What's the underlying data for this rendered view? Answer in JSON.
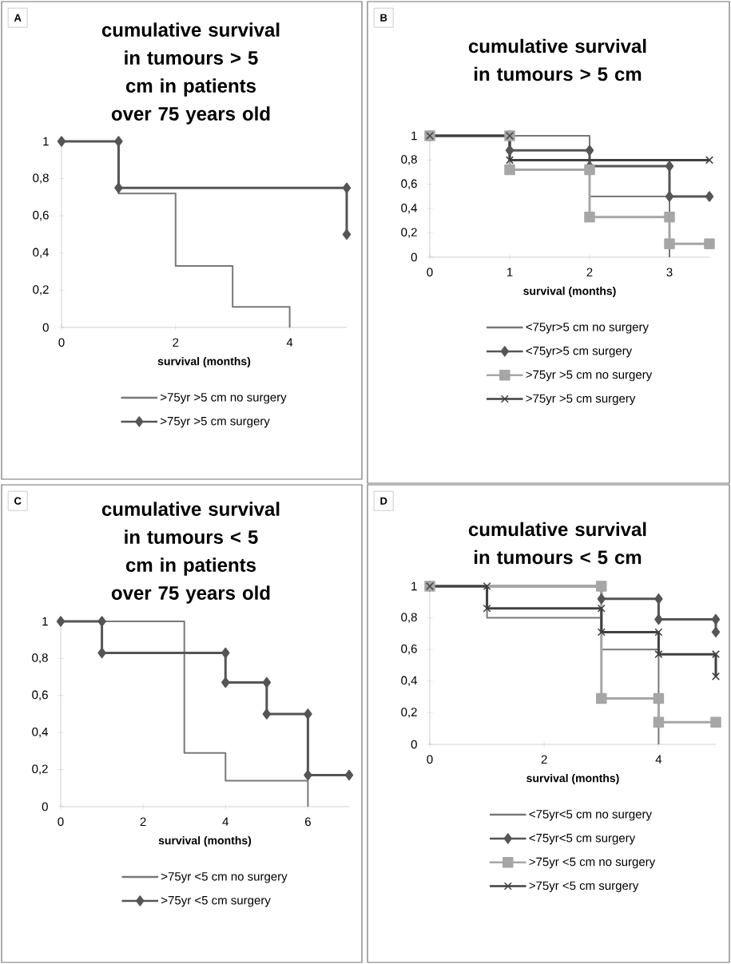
{
  "chart_data": [
    {
      "type": "line",
      "title": "cumulative survival in tumours > 5 cm in patients over 75 years old",
      "xlabel": "survival (months)",
      "annotations": [
        "A"
      ],
      "xlim": [
        0,
        5
      ],
      "xticks": [
        0,
        2,
        4
      ],
      "ylim": [
        0,
        1
      ],
      "yticks": [
        0,
        {
          "value": 0.2,
          "label": "0,2"
        },
        {
          "value": 0.4,
          "label": "0,4"
        },
        {
          "value": 0.6,
          "label": "0,6"
        },
        {
          "value": 0.8,
          "label": "0,8"
        },
        1
      ],
      "legend": "bottom",
      "series": [
        {
          "name": ">75yr >5 cm no surgery",
          "color": "#787878",
          "marker": "none",
          "x": [
            0,
            1,
            1,
            2,
            2,
            3,
            3,
            4,
            4
          ],
          "values": [
            1,
            1,
            0.72,
            0.72,
            0.33,
            0.33,
            0.11,
            0.11,
            0
          ]
        },
        {
          "name": ">75yr >5 cm surgery",
          "color": "#555555",
          "marker": "diamond",
          "x": [
            0,
            1,
            1,
            5,
            5
          ],
          "values": [
            1,
            1,
            0.75,
            0.75,
            0.5
          ]
        }
      ]
    },
    {
      "type": "line",
      "title": "cumulative survival in tumours > 5 cm",
      "xlabel": "survival (months)",
      "annotations": [
        "B"
      ],
      "xlim": [
        0,
        3.5
      ],
      "xticks": [
        0,
        1,
        2,
        3
      ],
      "ylim": [
        0,
        1
      ],
      "yticks": [
        0,
        {
          "value": 0.2,
          "label": "0,2"
        },
        {
          "value": 0.4,
          "label": "0,4"
        },
        {
          "value": 0.6,
          "label": "0,6"
        },
        {
          "value": 0.8,
          "label": "0,8"
        },
        1
      ],
      "legend": "bottom",
      "series": [
        {
          "name": "<75yr>5 cm no surgery",
          "color": "#787878",
          "marker": "none",
          "x": [
            0,
            2,
            2,
            3,
            3
          ],
          "values": [
            1,
            1,
            0.5,
            0.5,
            0
          ]
        },
        {
          "name": "<75yr>5 cm surgery",
          "color": "#555555",
          "marker": "diamond",
          "x": [
            0,
            1,
            1,
            2,
            2,
            3,
            3,
            3.5
          ],
          "values": [
            1,
            1,
            0.88,
            0.88,
            0.75,
            0.75,
            0.5,
            0.5
          ]
        },
        {
          "name": ">75yr >5 cm no surgery",
          "color": "#a6a6a6",
          "marker": "square",
          "x": [
            0,
            1,
            1,
            2,
            2,
            3,
            3,
            3.5
          ],
          "values": [
            1,
            1,
            0.72,
            0.72,
            0.33,
            0.33,
            0.11,
            0.11
          ]
        },
        {
          "name": ">75yr >5 cm surgery",
          "color": "#404040",
          "marker": "cross",
          "x": [
            0,
            1,
            1,
            3.5
          ],
          "values": [
            1,
            1,
            0.8,
            0.8
          ]
        }
      ]
    },
    {
      "type": "line",
      "title": "cumulative survival in tumours < 5 cm in patients over 75 years old",
      "xlabel": "survival (months)",
      "annotations": [
        "C"
      ],
      "xlim": [
        0,
        7
      ],
      "xticks": [
        0,
        2,
        4,
        6
      ],
      "ylim": [
        0,
        1
      ],
      "yticks": [
        0,
        {
          "value": 0.2,
          "label": "0,2"
        },
        {
          "value": 0.4,
          "label": "0,4"
        },
        {
          "value": 0.6,
          "label": "0,6"
        },
        {
          "value": 0.8,
          "label": "0,8"
        },
        1
      ],
      "legend": "bottom",
      "series": [
        {
          "name": ">75yr <5 cm no surgery",
          "color": "#787878",
          "marker": "none",
          "x": [
            0,
            3,
            3,
            4,
            4,
            6,
            6
          ],
          "values": [
            1,
            1,
            0.29,
            0.29,
            0.14,
            0.14,
            0
          ]
        },
        {
          "name": ">75yr <5 cm surgery",
          "color": "#555555",
          "marker": "diamond",
          "x": [
            0,
            1,
            1,
            4,
            4,
            5,
            5,
            6,
            6,
            7
          ],
          "values": [
            1,
            1,
            0.83,
            0.83,
            0.67,
            0.67,
            0.5,
            0.5,
            0.17,
            0.17
          ]
        }
      ]
    },
    {
      "type": "line",
      "title": "cumulative survival in tumours < 5 cm",
      "xlabel": "survival (months)",
      "annotations": [
        "D"
      ],
      "xlim": [
        0,
        5
      ],
      "xticks": [
        0,
        2,
        4
      ],
      "ylim": [
        0,
        1
      ],
      "yticks": [
        0,
        {
          "value": 0.2,
          "label": "0,2"
        },
        {
          "value": 0.4,
          "label": "0,4"
        },
        {
          "value": 0.6,
          "label": "0,6"
        },
        {
          "value": 0.8,
          "label": "0,8"
        },
        1
      ],
      "legend": "bottom",
      "series": [
        {
          "name": "<75yr<5 cm no surgery",
          "color": "#787878",
          "marker": "none",
          "x": [
            0,
            1,
            1,
            3,
            3,
            4,
            4
          ],
          "values": [
            1,
            1,
            0.8,
            0.8,
            0.6,
            0.6,
            0
          ]
        },
        {
          "name": "<75yr<5 cm surgery",
          "color": "#555555",
          "marker": "diamond",
          "x": [
            0,
            3,
            3,
            4,
            4,
            5,
            5
          ],
          "values": [
            1,
            1,
            0.92,
            0.92,
            0.79,
            0.79,
            0.71
          ]
        },
        {
          "name": ">75yr <5 cm no surgery",
          "color": "#a6a6a6",
          "marker": "square",
          "x": [
            0,
            3,
            3,
            4,
            4,
            5
          ],
          "values": [
            1,
            1,
            0.29,
            0.29,
            0.14,
            0.14
          ]
        },
        {
          "name": ">75yr <5 cm surgery",
          "color": "#404040",
          "marker": "cross",
          "x": [
            0,
            1,
            1,
            3,
            3,
            4,
            4,
            5,
            5
          ],
          "values": [
            1,
            1,
            0.86,
            0.86,
            0.71,
            0.71,
            0.57,
            0.57,
            0.43
          ]
        }
      ]
    }
  ]
}
